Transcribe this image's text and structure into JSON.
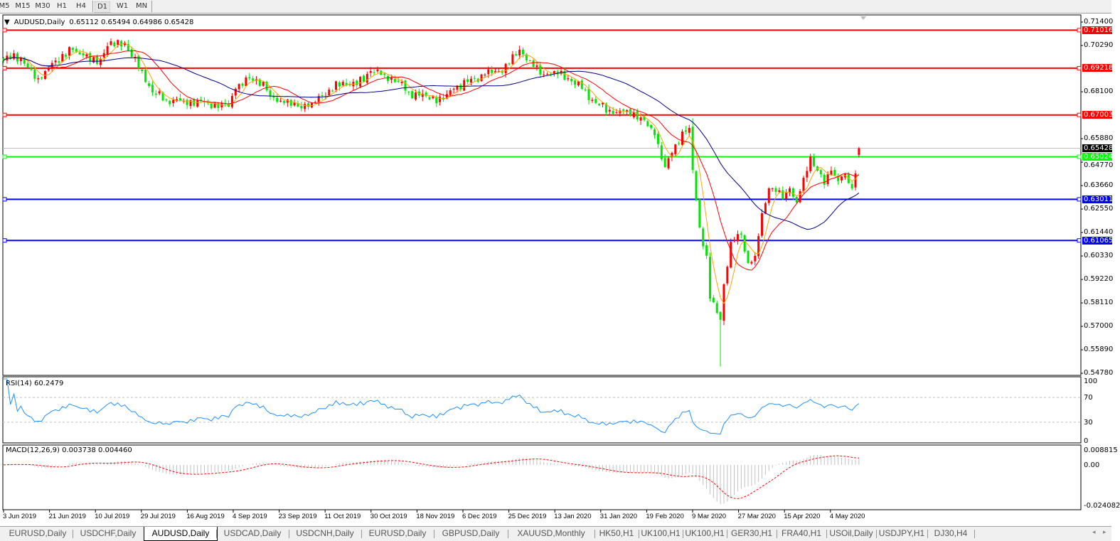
{
  "toolbar": {
    "timeframes": [
      "M5",
      "M15",
      "M30",
      "H1",
      "H4",
      "D1",
      "W1",
      "MN"
    ],
    "active": "D1"
  },
  "chart": {
    "header": "AUDUSD,Daily",
    "ohlc": "0.65112 0.65494 0.64986 0.65428",
    "rsi_label": "RSI(14) 60.2479",
    "macd_label": "MACD(12,26,9) 0.003738 0.004460"
  },
  "chart_data": {
    "type": "candlestick",
    "symbol": "AUDUSD",
    "timeframe": "Daily",
    "last": {
      "open": 0.65112,
      "high": 0.65494,
      "low": 0.64986,
      "close": 0.65428
    },
    "ylim": [
      0.5478,
      0.714
    ],
    "y_ticks": [
      "0.71400",
      "0.70290",
      "0.68100",
      "0.65880",
      "0.64770",
      "0.63660",
      "0.62550",
      "0.61440",
      "0.60330",
      "0.59220",
      "0.58110",
      "0.57000",
      "0.55890",
      "0.54780"
    ],
    "x_ticks": [
      "3 Jun 2019",
      "21 Jun 2019",
      "10 Jul 2019",
      "29 Jul 2019",
      "16 Aug 2019",
      "4 Sep 2019",
      "23 Sep 2019",
      "11 Oct 2019",
      "30 Oct 2019",
      "18 Nov 2019",
      "6 Dec 2019",
      "25 Dec 2019",
      "13 Jan 2020",
      "31 Jan 2020",
      "19 Feb 2020",
      "9 Mar 2020",
      "27 Mar 2020",
      "15 Apr 2020",
      "4 May 2020"
    ],
    "close_keypoints": [
      [
        "2019-06-03",
        0.6958
      ],
      [
        "2019-06-06",
        0.6992
      ],
      [
        "2019-06-12",
        0.6925
      ],
      [
        "2019-06-17",
        0.6874
      ],
      [
        "2019-06-19",
        0.6908
      ],
      [
        "2019-06-24",
        0.6958
      ],
      [
        "2019-07-01",
        0.7009
      ],
      [
        "2019-07-04",
        0.6982
      ],
      [
        "2019-07-10",
        0.6942
      ],
      [
        "2019-07-15",
        0.7026
      ],
      [
        "2019-07-22",
        0.7042
      ],
      [
        "2019-07-24",
        0.6975
      ],
      [
        "2019-07-29",
        0.6908
      ],
      [
        "2019-08-01",
        0.6807
      ],
      [
        "2019-08-07",
        0.6773
      ],
      [
        "2019-08-14",
        0.6767
      ],
      [
        "2019-08-23",
        0.6757
      ],
      [
        "2019-09-02",
        0.674
      ],
      [
        "2019-09-04",
        0.6824
      ],
      [
        "2019-09-10",
        0.6874
      ],
      [
        "2019-09-16",
        0.6857
      ],
      [
        "2019-09-18",
        0.679
      ],
      [
        "2019-09-24",
        0.6757
      ],
      [
        "2019-09-30",
        0.674
      ],
      [
        "2019-10-04",
        0.6757
      ],
      [
        "2019-10-09",
        0.679
      ],
      [
        "2019-10-17",
        0.6857
      ],
      [
        "2019-10-23",
        0.6841
      ],
      [
        "2019-10-29",
        0.6908
      ],
      [
        "2019-11-04",
        0.6891
      ],
      [
        "2019-11-08",
        0.6857
      ],
      [
        "2019-11-13",
        0.6807
      ],
      [
        "2019-11-20",
        0.679
      ],
      [
        "2019-11-27",
        0.6773
      ],
      [
        "2019-12-02",
        0.6824
      ],
      [
        "2019-12-06",
        0.6857
      ],
      [
        "2019-12-13",
        0.6891
      ],
      [
        "2019-12-19",
        0.6908
      ],
      [
        "2019-12-24",
        0.6942
      ],
      [
        "2019-12-27",
        0.7009
      ],
      [
        "2020-01-01",
        0.6958
      ],
      [
        "2020-01-06",
        0.6891
      ],
      [
        "2020-01-10",
        0.6908
      ],
      [
        "2020-01-16",
        0.6874
      ],
      [
        "2020-01-22",
        0.6824
      ],
      [
        "2020-01-28",
        0.6757
      ],
      [
        "2020-02-04",
        0.6706
      ],
      [
        "2020-02-10",
        0.6723
      ],
      [
        "2020-02-14",
        0.6689
      ],
      [
        "2020-02-20",
        0.6605
      ],
      [
        "2020-02-25",
        0.6454
      ],
      [
        "2020-02-27",
        0.6521
      ],
      [
        "2020-03-03",
        0.6622
      ],
      [
        "2020-03-05",
        0.6639
      ],
      [
        "2020-03-06",
        0.644
      ],
      [
        "2020-03-10",
        0.6168
      ],
      [
        "2020-03-12",
        0.6034
      ],
      [
        "2020-03-13",
        0.5831
      ],
      [
        "2020-03-17",
        0.5764
      ],
      [
        "2020-03-18",
        0.5731
      ],
      [
        "2020-03-19",
        0.5899
      ],
      [
        "2020-03-23",
        0.61
      ],
      [
        "2020-03-26",
        0.6134
      ],
      [
        "2020-03-30",
        0.6
      ],
      [
        "2020-04-01",
        0.6034
      ],
      [
        "2020-04-03",
        0.6235
      ],
      [
        "2020-04-07",
        0.6353
      ],
      [
        "2020-04-09",
        0.6336
      ],
      [
        "2020-04-13",
        0.6302
      ],
      [
        "2020-04-15",
        0.6353
      ],
      [
        "2020-04-17",
        0.6286
      ],
      [
        "2020-04-21",
        0.6403
      ],
      [
        "2020-04-23",
        0.6504
      ],
      [
        "2020-04-27",
        0.6437
      ],
      [
        "2020-04-29",
        0.637
      ],
      [
        "2020-05-01",
        0.6437
      ],
      [
        "2020-05-05",
        0.6387
      ],
      [
        "2020-05-07",
        0.642
      ],
      [
        "2020-05-11",
        0.6353
      ],
      [
        "2020-05-13",
        0.65428
      ]
    ],
    "extreme_wicks": [
      [
        "2020-03-06",
        0.6685,
        "high"
      ],
      [
        "2020-03-18",
        0.551,
        "low"
      ]
    ],
    "horizontal_levels": [
      {
        "price": "0.71016",
        "color": "#ff0000"
      },
      {
        "price": "0.69218",
        "color": "#ff0000"
      },
      {
        "price": "0.67003",
        "color": "#ff0000"
      },
      {
        "price": "0.65024",
        "color": "#00ff00"
      },
      {
        "price": "0.63011",
        "color": "#0000ff"
      },
      {
        "price": "0.61065",
        "color": "#0000ff"
      }
    ],
    "current_price": "0.65428",
    "colors": {
      "up_candle": "#ff0000",
      "down_candle": "#00e600",
      "ma_fast": "#ffa500",
      "ma_mid": "#ff0000",
      "ma_slow": "#00008b",
      "rsi": "#1e90ff",
      "macd_hist": "#c0c0c0",
      "macd_signal": "#ff0000"
    },
    "rsi": {
      "levels": [
        "100",
        "70",
        "30",
        "0"
      ],
      "current": 60.2479
    },
    "macd": {
      "ticks": [
        "0.008815",
        "0.00",
        "-0.024082"
      ],
      "main": 0.003738,
      "signal": 0.00446
    }
  },
  "tabs": [
    "EURUSD,Daily",
    "USDCHF,Daily",
    "AUDUSD,Daily",
    "USDCAD,Daily",
    "USDCNH,Daily",
    "EURUSD,Daily",
    "GBPUSD,Daily",
    "XAUUSD,Monthly",
    "HK50,H1",
    "UK100,H1",
    "UK100,H1",
    "GER30,H1",
    "FRA40,H1",
    "USOil,Daily",
    "USDJPY,H1",
    "DJ30,H4"
  ],
  "active_tab": "AUDUSD,Daily"
}
